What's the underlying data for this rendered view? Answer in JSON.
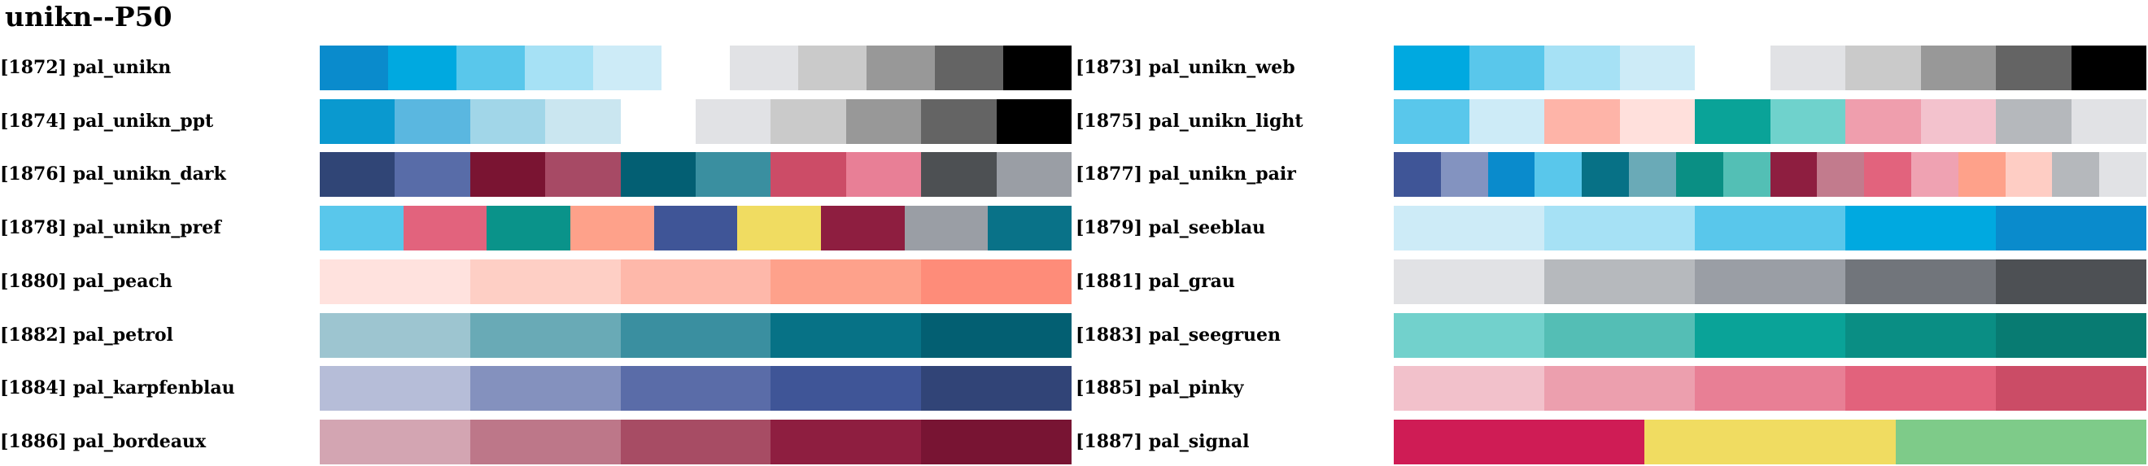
{
  "title": "unikn--P50",
  "palettes": [
    {
      "label": "[1872] pal_unikn",
      "colors": [
        "#0a8bcc",
        "#00a9e0",
        "#59c7eb",
        "#a6e1f5",
        "#cdebf7",
        null,
        "#e1e2e5",
        "#cacaca",
        "#989898",
        "#646464",
        "#000000"
      ]
    },
    {
      "label": "[1873] pal_unikn_web",
      "colors": [
        "#00a9e0",
        "#59c7eb",
        "#a6e1f5",
        "#cdebf7",
        null,
        "#e1e2e5",
        "#cacaca",
        "#989898",
        "#646464",
        "#000000"
      ]
    },
    {
      "label": "[1874] pal_unikn_ppt",
      "colors": [
        "#0a99cf",
        "#5ab7e0",
        "#a1d6e8",
        "#cae6f0",
        null,
        "#e1e2e5",
        "#cacaca",
        "#989898",
        "#646464",
        "#000000"
      ]
    },
    {
      "label": "[1875] pal_unikn_light",
      "colors": [
        "#59c7eb",
        "#cdebf7",
        "#feb4a8",
        "#ffe0dc",
        "#0aa398",
        "#6fd2cc",
        "#ef9ead",
        "#f3c2cd",
        "#b5b8bc",
        "#e1e2e5"
      ]
    },
    {
      "label": "[1876] pal_unikn_dark",
      "colors": [
        "#304576",
        "#586ca8",
        "#7a1432",
        "#a74a65",
        "#035f73",
        "#3a8fa0",
        "#cc4c67",
        "#e87f96",
        "#4d5053",
        "#9a9ea5"
      ]
    },
    {
      "label": "[1877] pal_unikn_pair",
      "colors": [
        "#3f5597",
        "#8393c0",
        "#0a8bcc",
        "#59c7eb",
        "#077186",
        "#6aaab7",
        "#0a8f84",
        "#53bfb5",
        "#8e1e40",
        "#c27b8d",
        "#e2637d",
        "#efa2b2",
        "#fea18a",
        "#fecdc4",
        "#b5b8bc",
        "#e1e2e5"
      ]
    },
    {
      "label": "[1878] pal_unikn_pref",
      "colors": [
        "#59c7eb",
        "#e2637d",
        "#0a938a",
        "#fea18a",
        "#3f5597",
        "#f0dc61",
        "#8e1e40",
        "#9a9ea5",
        "#097288"
      ]
    },
    {
      "label": "[1879] pal_seeblau",
      "colors": [
        "#cdebf7",
        "#a6e1f5",
        "#59c7eb",
        "#00a9e0",
        "#0a8bcc"
      ]
    },
    {
      "label": "[1880] pal_peach",
      "colors": [
        "#ffe2de",
        "#fecfc5",
        "#feb8aa",
        "#fea18b",
        "#fe8c79"
      ]
    },
    {
      "label": "[1881] pal_grau",
      "colors": [
        "#e1e2e5",
        "#b6b9bd",
        "#9a9ea5",
        "#71757b",
        "#4d5054"
      ]
    },
    {
      "label": "[1882] pal_petrol",
      "colors": [
        "#9dc5d0",
        "#69aab6",
        "#3a8fa0",
        "#077286",
        "#035f72"
      ]
    },
    {
      "label": "[1883] pal_seegruen",
      "colors": [
        "#72d1cc",
        "#54beb5",
        "#0aa398",
        "#0a8e84",
        "#087b72"
      ]
    },
    {
      "label": "[1884] pal_karpfenblau",
      "colors": [
        "#b6bdd8",
        "#8491be",
        "#5a6ca8",
        "#3f5597",
        "#314477"
      ]
    },
    {
      "label": "[1885] pal_pinky",
      "colors": [
        "#f2c1cb",
        "#ec9fae",
        "#e87f95",
        "#e2627c",
        "#cb4c66"
      ]
    },
    {
      "label": "[1886] pal_bordeaux",
      "colors": [
        "#d3a5b2",
        "#bd7789",
        "#a74c64",
        "#8e1e40",
        "#781433"
      ]
    },
    {
      "label": "[1887] pal_signal",
      "colors": [
        "#cf1c55",
        "#f0dc61",
        "#7ecb89"
      ]
    }
  ]
}
